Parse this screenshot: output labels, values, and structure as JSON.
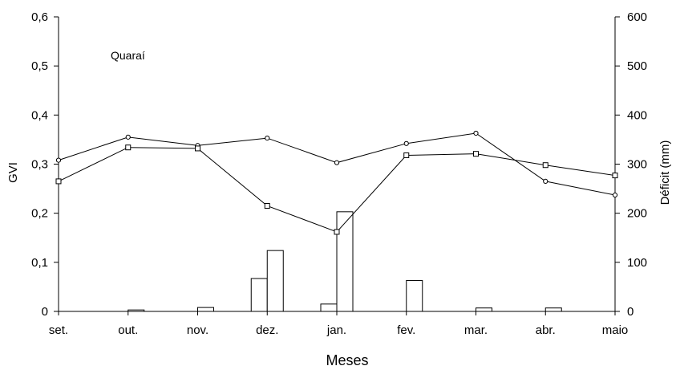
{
  "chart_data": {
    "type": "bar+line",
    "annotation": "Quaraí",
    "xlabel": "Meses",
    "ylabel_left": "GVI",
    "ylabel_right": "Déficit (mm)",
    "categories": [
      "set.",
      "out.",
      "nov.",
      "dez.",
      "jan.",
      "fev.",
      "mar.",
      "abr.",
      "maio"
    ],
    "ylim_left": [
      0,
      0.6
    ],
    "yticks_left": [
      "0",
      "0,1",
      "0,2",
      "0,3",
      "0,4",
      "0,5",
      "0,6"
    ],
    "ylim_right": [
      0,
      600
    ],
    "yticks_right": [
      "0",
      "100",
      "200",
      "300",
      "400",
      "500",
      "600"
    ],
    "line_series": [
      {
        "marker": "circle",
        "values": [
          0.308,
          0.355,
          0.338,
          0.353,
          0.303,
          0.342,
          0.363,
          0.265,
          0.237
        ]
      },
      {
        "marker": "square",
        "values": [
          0.265,
          0.334,
          0.332,
          0.215,
          0.162,
          0.318,
          0.321,
          0.298,
          0.277
        ]
      }
    ],
    "bar_series": [
      {
        "position": "left",
        "values": [
          0,
          0,
          0,
          67,
          15,
          0,
          0,
          0,
          0
        ]
      },
      {
        "position": "right",
        "values": [
          0,
          3,
          8,
          124,
          203,
          63,
          7,
          7,
          0
        ]
      }
    ]
  }
}
